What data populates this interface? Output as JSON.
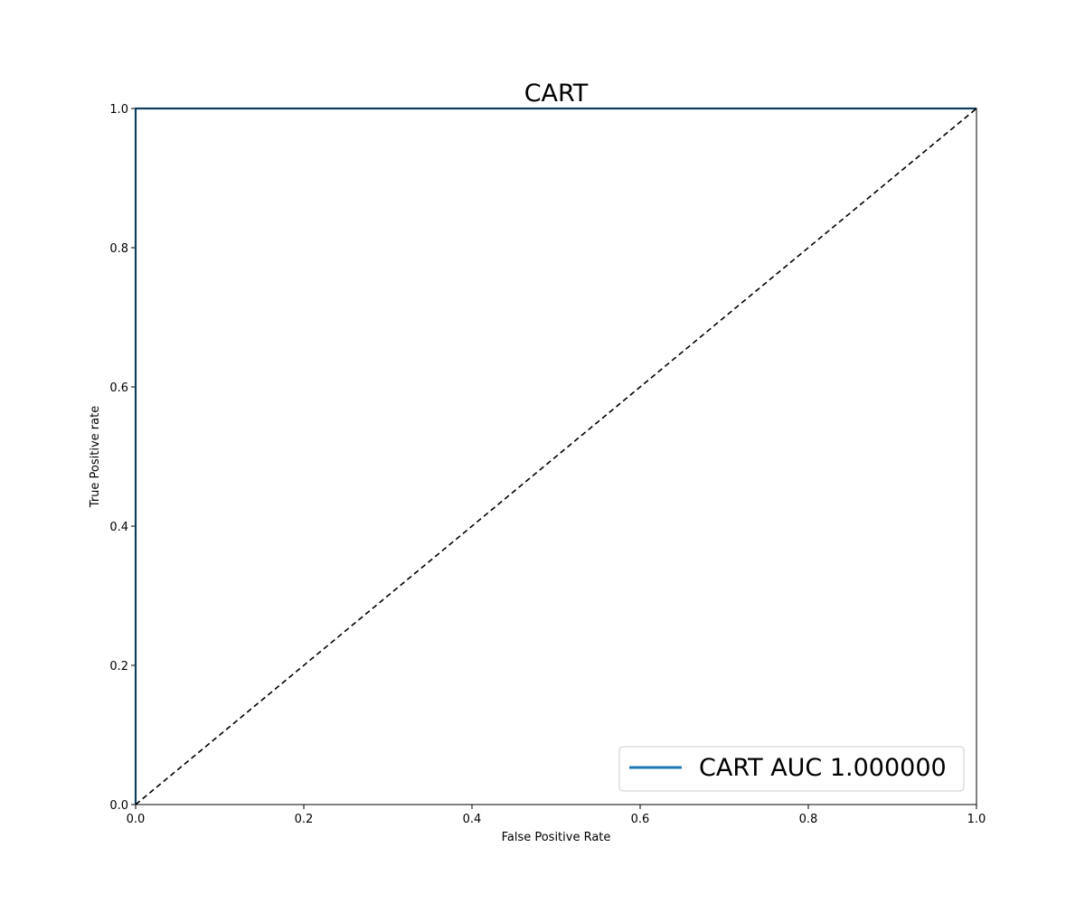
{
  "colors": {
    "background": "#ffffff",
    "roc_line": "#1f77b4",
    "diagonal": "#000000",
    "axes": "#000000",
    "legend_border": "#cccccc"
  },
  "chart_data": {
    "type": "line",
    "title": "CART",
    "xlabel": "False Positive Rate",
    "ylabel": "True Positive rate",
    "xlim": [
      0.0,
      1.0
    ],
    "ylim": [
      0.0,
      1.0
    ],
    "xticks": [
      0.0,
      0.2,
      0.4,
      0.6,
      0.8,
      1.0
    ],
    "yticks": [
      0.0,
      0.2,
      0.4,
      0.6,
      0.8,
      1.0
    ],
    "xtick_labels": [
      "0.0",
      "0.2",
      "0.4",
      "0.6",
      "0.8",
      "1.0"
    ],
    "ytick_labels": [
      "0.0",
      "0.2",
      "0.4",
      "0.6",
      "0.8",
      "1.0"
    ],
    "grid": false,
    "legend_position": "lower-right",
    "series": [
      {
        "name": "CART AUC 1.000000",
        "style": "solid",
        "x": [
          0.0,
          0.0,
          1.0
        ],
        "y": [
          0.0,
          1.0,
          1.0
        ]
      },
      {
        "style": "dashed",
        "x": [
          0.0,
          1.0
        ],
        "y": [
          0.0,
          1.0
        ]
      }
    ]
  }
}
